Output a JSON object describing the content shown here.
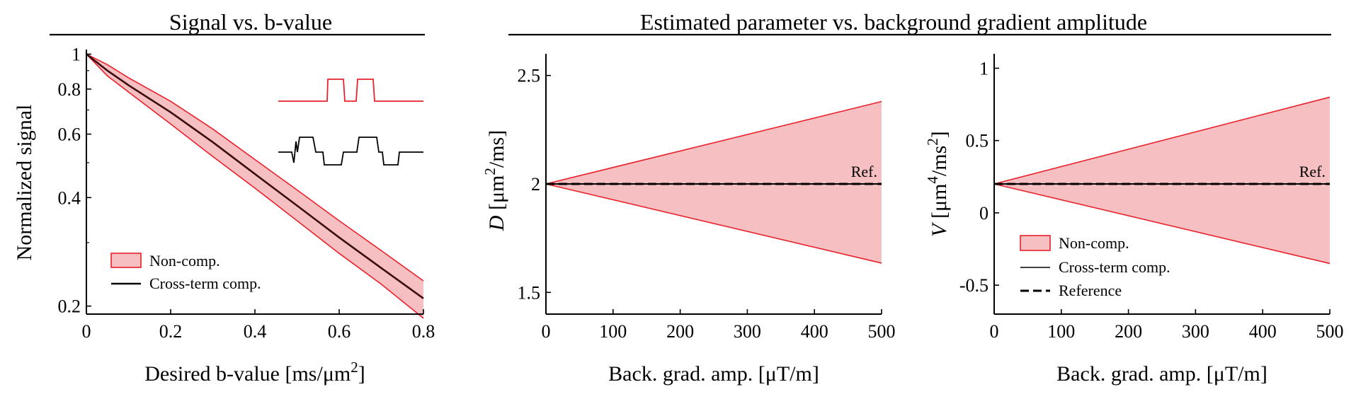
{
  "titles": {
    "left": "Signal vs. b-value",
    "right": "Estimated parameter vs. background gradient amplitude"
  },
  "colors": {
    "band_fill": "#f6bfc1",
    "band_edge": "#e8212b",
    "line": "#000000",
    "comp_line": "#3b0d0f"
  },
  "chart_data": [
    {
      "type": "area",
      "xlabel": "Desired b-value [ms/μm²]",
      "ylabel": "Normalized signal",
      "xlim": [
        0,
        0.8
      ],
      "ylim": [
        0.19,
        1.03
      ],
      "yscale": "log",
      "xticks": [
        0,
        0.2,
        0.4,
        0.6,
        0.8
      ],
      "xtick_labels": [
        "0",
        "0.2",
        "0.4",
        "0.6",
        "0.8"
      ],
      "yticks": [
        0.2,
        0.4,
        0.6,
        0.8,
        1
      ],
      "ytick_labels": [
        "0.2",
        "0.4",
        "0.6",
        "0.8",
        "1"
      ],
      "series": [
        {
          "name": "Non-comp.",
          "kind": "band",
          "x": [
            0,
            0.05,
            0.1,
            0.2,
            0.3,
            0.4,
            0.5,
            0.6,
            0.7,
            0.8
          ],
          "upper": [
            1.0,
            0.935,
            0.86,
            0.74,
            0.62,
            0.51,
            0.42,
            0.345,
            0.285,
            0.235
          ],
          "lower": [
            1.0,
            0.87,
            0.785,
            0.64,
            0.52,
            0.425,
            0.345,
            0.28,
            0.23,
            0.185
          ]
        },
        {
          "name": "Cross-term comp.",
          "kind": "line",
          "x": [
            0,
            0.05,
            0.1,
            0.2,
            0.3,
            0.4,
            0.5,
            0.6,
            0.7,
            0.8
          ],
          "y": [
            1.0,
            0.9,
            0.82,
            0.69,
            0.57,
            0.465,
            0.38,
            0.31,
            0.255,
            0.21
          ]
        }
      ],
      "legend": {
        "position": "bottom-left",
        "entries": [
          "Non-comp.",
          "Cross-term comp."
        ]
      },
      "inset": "gradient waveform sketches (non-compensated, red; cross-term compensated, black)"
    },
    {
      "type": "area",
      "xlabel": "Back. grad. amp. [μT/m]",
      "ylabel": "D [μm²/ms]",
      "xlim": [
        0,
        500
      ],
      "ylim": [
        1.4,
        2.6
      ],
      "xticks": [
        0,
        100,
        200,
        300,
        400,
        500
      ],
      "xtick_labels": [
        "0",
        "100",
        "200",
        "300",
        "400",
        "500"
      ],
      "yticks": [
        1.5,
        2,
        2.5
      ],
      "ytick_labels": [
        "1.5",
        "2",
        "2.5"
      ],
      "series": [
        {
          "name": "Non-comp.",
          "kind": "band",
          "x": [
            0,
            500
          ],
          "upper": [
            2.0,
            2.38
          ],
          "lower": [
            2.0,
            1.635
          ]
        },
        {
          "name": "Cross-term comp.",
          "kind": "line",
          "x": [
            0,
            500
          ],
          "y": [
            2.0,
            2.0
          ]
        },
        {
          "name": "Reference",
          "kind": "dashed",
          "x": [
            0,
            500
          ],
          "y": [
            2.0,
            2.0
          ]
        }
      ],
      "annotations": [
        "Ref."
      ]
    },
    {
      "type": "area",
      "xlabel": "Back. grad. amp. [μT/m]",
      "ylabel": "V [μm⁴/ms²]",
      "xlim": [
        0,
        500
      ],
      "ylim": [
        -0.7,
        1.1
      ],
      "xticks": [
        0,
        100,
        200,
        300,
        400,
        500
      ],
      "xtick_labels": [
        "0",
        "100",
        "200",
        "300",
        "400",
        "500"
      ],
      "yticks": [
        -0.5,
        0,
        0.5,
        1
      ],
      "ytick_labels": [
        "-0.5",
        "0",
        "0.5",
        "1"
      ],
      "series": [
        {
          "name": "Non-comp.",
          "kind": "band",
          "x": [
            0,
            500
          ],
          "upper": [
            0.2,
            0.8
          ],
          "lower": [
            0.2,
            -0.35
          ]
        },
        {
          "name": "Cross-term comp.",
          "kind": "line",
          "x": [
            0,
            500
          ],
          "y": [
            0.2,
            0.2
          ]
        },
        {
          "name": "Reference",
          "kind": "dashed",
          "x": [
            0,
            500
          ],
          "y": [
            0.2,
            0.2
          ]
        }
      ],
      "annotations": [
        "Ref."
      ],
      "legend": {
        "position": "bottom-left",
        "entries": [
          "Non-comp.",
          "Cross-term comp.",
          "Reference"
        ]
      }
    }
  ]
}
